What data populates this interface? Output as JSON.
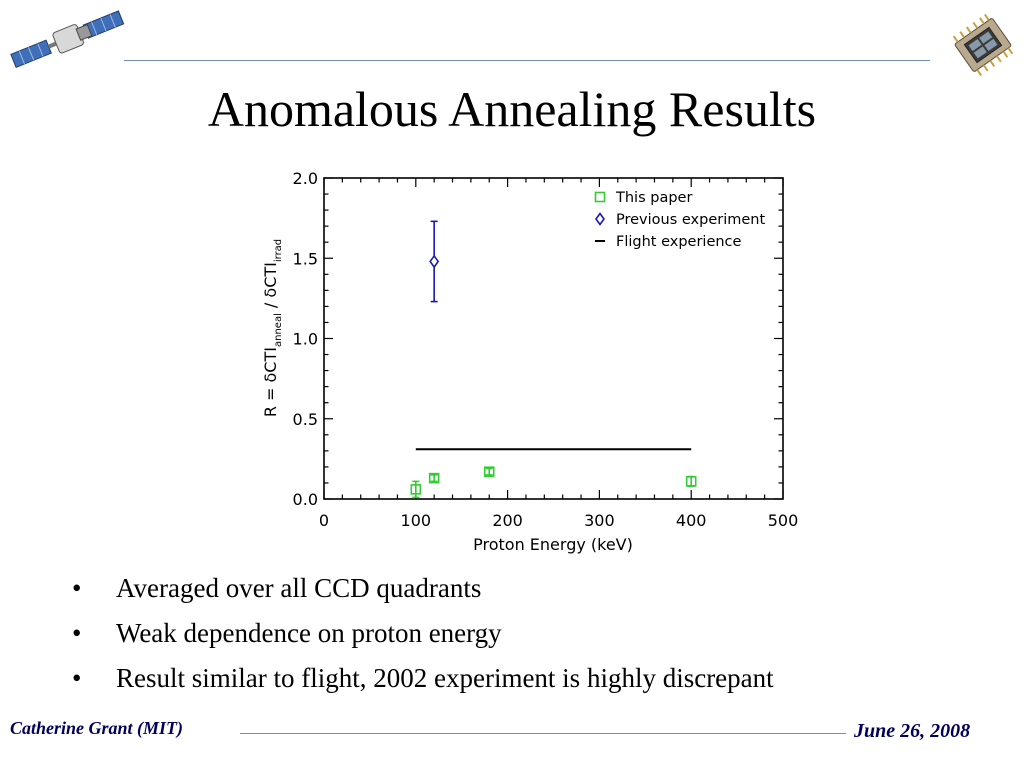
{
  "slide": {
    "title": "Anomalous Annealing Results",
    "bullets": [
      "Averaged over all CCD quadrants",
      "Weak dependence on proton energy",
      "Result similar to flight, 2002 experiment is highly discrepant"
    ],
    "footer_left": "Catherine Grant (MIT)",
    "footer_right": "June 26, 2008",
    "bullet_glyph": "•",
    "icons": {
      "left": "satellite-icon",
      "right": "ccd-chip-icon"
    },
    "colors": {
      "rule": "#6f8fb0",
      "footer_text": "#00005a"
    }
  },
  "chart_data": {
    "type": "scatter",
    "xlabel": "Proton Energy (keV)",
    "ylabel": "R = δCTI_anneal / δCTI_irrad",
    "xlim": [
      0,
      500
    ],
    "ylim": [
      0.0,
      2.0
    ],
    "xticks": [
      "0",
      "100",
      "200",
      "300",
      "400",
      "500"
    ],
    "yticks": [
      "0.0",
      "0.5",
      "1.0",
      "1.5",
      "2.0"
    ],
    "legend_position": "top-right",
    "series": [
      {
        "name": "This paper",
        "marker": "square",
        "color": "#33cc33",
        "points": [
          {
            "x": 100,
            "y": 0.06,
            "err": 0.05
          },
          {
            "x": 120,
            "y": 0.13,
            "err": 0.02
          },
          {
            "x": 180,
            "y": 0.17,
            "err": 0.02
          },
          {
            "x": 400,
            "y": 0.11,
            "err": 0.03
          }
        ]
      },
      {
        "name": "Previous experiment",
        "marker": "diamond",
        "color": "#1a1aaa",
        "points": [
          {
            "x": 120,
            "y": 1.48,
            "err": 0.25
          }
        ]
      },
      {
        "name": "Flight experience",
        "marker": "line",
        "color": "#000000",
        "segment": {
          "x": [
            100,
            400
          ],
          "y": 0.31
        }
      }
    ]
  }
}
